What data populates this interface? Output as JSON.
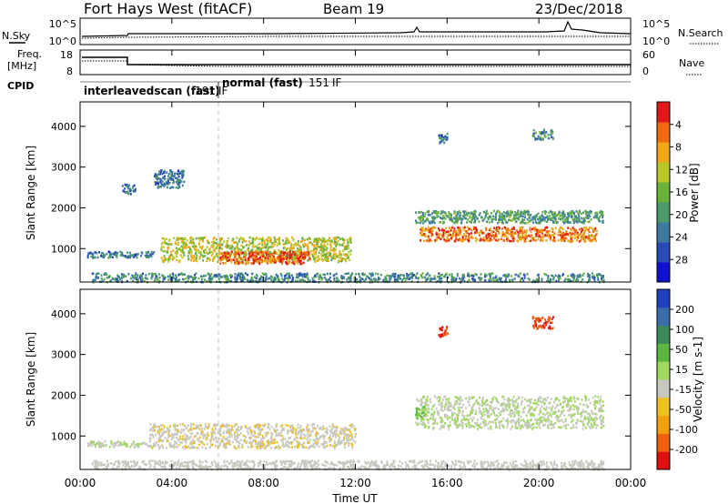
{
  "header": {
    "station": "Fort Hays West (fitACF)",
    "beam": "Beam 19",
    "date": "23/Dec/2018"
  },
  "nsky_panel": {
    "left_label": "N.Sky",
    "right_label": "N.Search",
    "left_ticks": [
      "10^5",
      "10^0"
    ],
    "right_ticks": [
      "10^5",
      "10^0"
    ]
  },
  "freq_panel": {
    "left_label_1": "Freq.",
    "left_label_2": "[MHz]",
    "right_label": "Nave",
    "left_ticks": [
      "18",
      "8"
    ],
    "right_ticks": [
      "60",
      "0"
    ]
  },
  "cpid": {
    "label": "CPID",
    "segments": [
      {
        "name": "interleavedscan (fast)",
        "id": "191",
        "suffix": "IF"
      },
      {
        "name": "normal (fast)",
        "id": "151",
        "suffix": "IF"
      }
    ]
  },
  "x_axis": {
    "label": "Time UT",
    "ticks": [
      "00:00",
      "04:00",
      "08:00",
      "12:00",
      "16:00",
      "20:00",
      "00:00"
    ],
    "range_hours": [
      0,
      24
    ]
  },
  "chart_data": [
    {
      "type": "heatmap",
      "panel": "power",
      "ylabel": "Slant Range [km]",
      "yticks": [
        1000,
        2000,
        3000,
        4000
      ],
      "ylim": [
        180,
        4600
      ],
      "colorbar": {
        "label": "Power [dB]",
        "ticks": [
          "4",
          "8",
          "12",
          "16",
          "20",
          "24",
          "28"
        ],
        "range": [
          0,
          30
        ],
        "colors": [
          "#1010d0",
          "#2a4ab8",
          "#3d7aa0",
          "#4a9a6a",
          "#6ab23a",
          "#b8c828",
          "#f0a818",
          "#f06a10",
          "#e01818"
        ]
      },
      "regions": [
        {
          "name": "morning-band",
          "t0": 0.3,
          "t1": 3.2,
          "r0": 800,
          "r1": 950,
          "value": 8
        },
        {
          "name": "growing-band",
          "t0": 3.5,
          "t1": 11.8,
          "r0": 700,
          "r1": 1300,
          "value": 18
        },
        {
          "name": "core-band",
          "t0": 6.0,
          "t1": 10.0,
          "r0": 650,
          "r1": 950,
          "value": 26
        },
        {
          "name": "near-range",
          "t0": 0.5,
          "t1": 22.8,
          "r0": 200,
          "r1": 420,
          "value": 10
        },
        {
          "name": "evening-upper",
          "t0": 14.6,
          "t1": 22.8,
          "r0": 1650,
          "r1": 1950,
          "value": 12
        },
        {
          "name": "evening-lower",
          "t0": 14.8,
          "t1": 22.5,
          "r0": 1200,
          "r1": 1550,
          "value": 24
        },
        {
          "name": "patch-2500",
          "t0": 1.8,
          "t1": 2.4,
          "r0": 2350,
          "r1": 2600,
          "value": 8
        },
        {
          "name": "patch-2800",
          "t0": 3.2,
          "t1": 4.5,
          "r0": 2500,
          "r1": 2950,
          "value": 8
        },
        {
          "name": "patch-3800",
          "t0": 15.6,
          "t1": 16.0,
          "r0": 3600,
          "r1": 3850,
          "value": 8
        },
        {
          "name": "patch-3900",
          "t0": 19.7,
          "t1": 20.6,
          "r0": 3700,
          "r1": 3950,
          "value": 10
        }
      ]
    },
    {
      "type": "heatmap",
      "panel": "velocity",
      "ylabel": "Slant Range [km]",
      "yticks": [
        1000,
        2000,
        3000,
        4000
      ],
      "ylim": [
        180,
        4600
      ],
      "colorbar": {
        "label": "Velocity [m s-1]",
        "ticks": [
          "200",
          "100",
          "50",
          "15",
          "-15",
          "-50",
          "-100",
          "-200"
        ],
        "range": [
          -250,
          250
        ],
        "colors": [
          "#2040c0",
          "#3a6ea8",
          "#3a8a5a",
          "#5ab840",
          "#a0d860",
          "#c8c8c0",
          "#f0c020",
          "#f0a010",
          "#f06010",
          "#e01010"
        ]
      },
      "regions": [
        {
          "name": "morning-band",
          "t0": 0.3,
          "t1": 3.2,
          "r0": 750,
          "r1": 900,
          "value": 0
        },
        {
          "name": "growing-band",
          "t0": 3.0,
          "t1": 12.0,
          "r0": 720,
          "r1": 1320,
          "value": -40
        },
        {
          "name": "near-range",
          "t0": 0.5,
          "t1": 22.8,
          "r0": 200,
          "r1": 420,
          "value": -30
        },
        {
          "name": "evening-band",
          "t0": 14.6,
          "t1": 22.8,
          "r0": 1200,
          "r1": 2000,
          "value": 0
        },
        {
          "name": "green-patch",
          "t0": 14.6,
          "t1": 15.0,
          "r0": 1450,
          "r1": 1750,
          "value": 60
        },
        {
          "name": "patch-3800",
          "t0": 15.6,
          "t1": 16.0,
          "r0": 3450,
          "r1": 3700,
          "value": -200
        },
        {
          "name": "patch-3900",
          "t0": 19.7,
          "t1": 20.6,
          "r0": 3650,
          "r1": 3950,
          "value": -200
        }
      ]
    }
  ]
}
